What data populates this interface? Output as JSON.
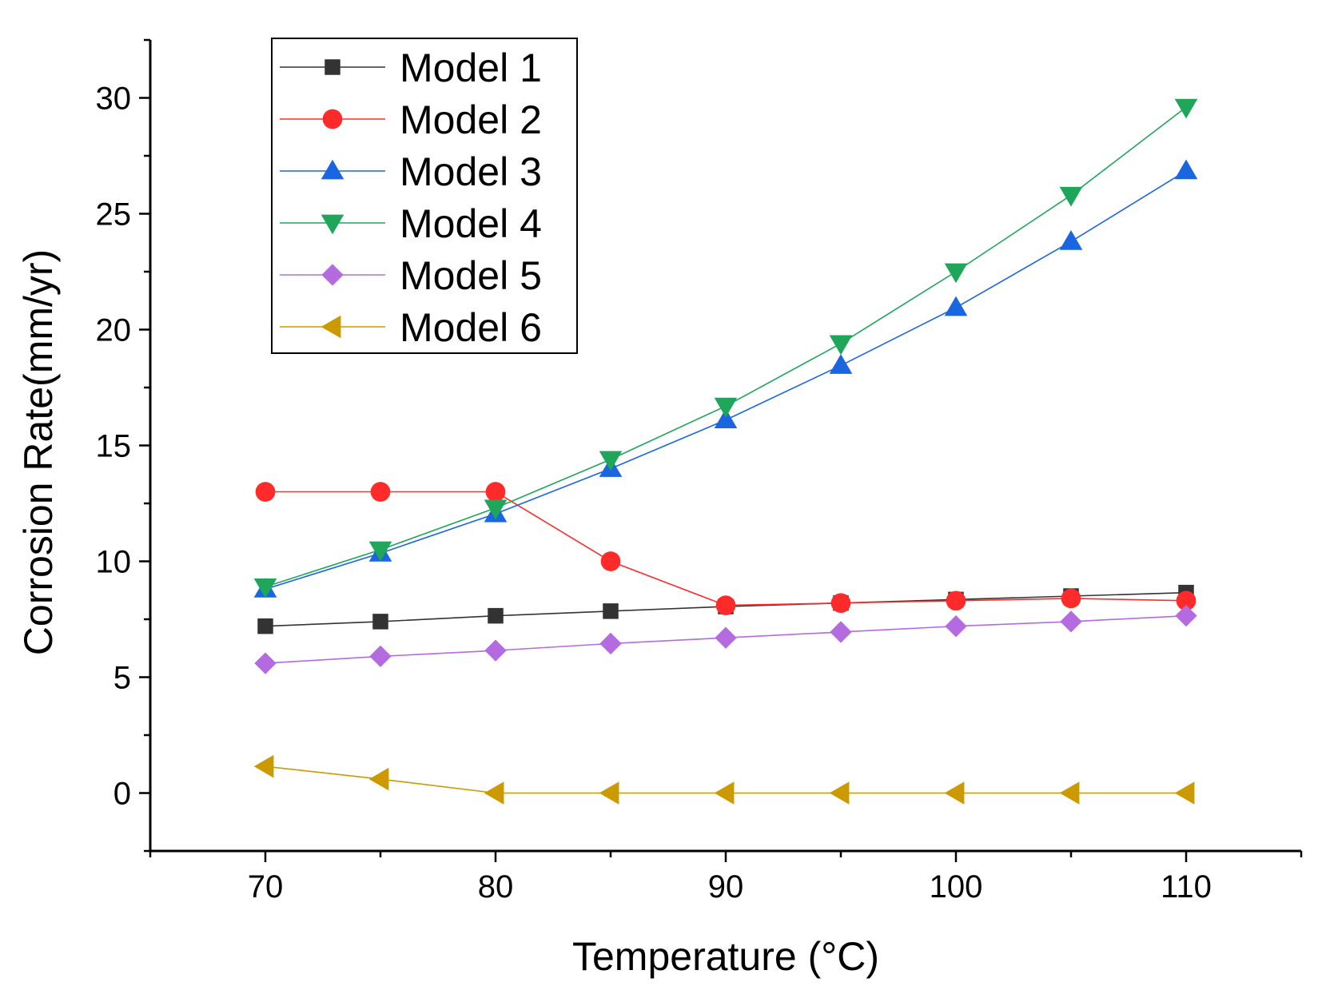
{
  "chart_data": {
    "type": "line",
    "title": "",
    "xlabel": "Temperature (°C)",
    "ylabel": "Corrosion Rate(mm/yr)",
    "x": [
      70,
      75,
      80,
      85,
      90,
      95,
      100,
      105,
      110
    ],
    "xlim": [
      65,
      115
    ],
    "ylim": [
      -2.5,
      32.5
    ],
    "xticks": [
      70,
      80,
      90,
      100,
      110
    ],
    "yticks": [
      0,
      5,
      10,
      15,
      20,
      25,
      30
    ],
    "grid": false,
    "legend_position": "top-left",
    "series": [
      {
        "name": "Model 1",
        "color": "#333333",
        "marker": "square",
        "values": [
          7.2,
          7.4,
          7.65,
          7.85,
          8.05,
          8.2,
          8.35,
          8.5,
          8.65
        ]
      },
      {
        "name": "Model 2",
        "color": "#ff2b2b",
        "marker": "circle",
        "values": [
          13.0,
          13.0,
          13.0,
          10.0,
          8.1,
          8.2,
          8.3,
          8.4,
          8.3
        ]
      },
      {
        "name": "Model 3",
        "color": "#1a66e0",
        "marker": "triangle-up",
        "values": [
          8.8,
          10.35,
          12.05,
          14.0,
          16.1,
          18.45,
          20.95,
          23.8,
          26.85
        ]
      },
      {
        "name": "Model 4",
        "color": "#1fa65a",
        "marker": "triangle-down",
        "values": [
          8.9,
          10.5,
          12.3,
          14.4,
          16.7,
          19.4,
          22.5,
          25.8,
          29.6
        ]
      },
      {
        "name": "Model 5",
        "color": "#b36bdf",
        "marker": "diamond",
        "values": [
          5.6,
          5.9,
          6.15,
          6.45,
          6.7,
          6.95,
          7.2,
          7.4,
          7.65
        ]
      },
      {
        "name": "Model 6",
        "color": "#cc9900",
        "marker": "triangle-left",
        "values": [
          1.15,
          0.6,
          0.0,
          0.0,
          0.0,
          0.0,
          0.0,
          0.0,
          0.0
        ]
      }
    ]
  }
}
